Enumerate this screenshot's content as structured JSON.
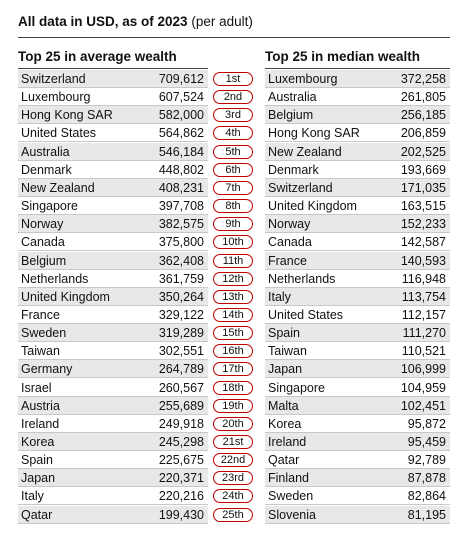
{
  "header": {
    "title": "All data in USD, as of 2023",
    "subtitle": "(per adult)"
  },
  "average": {
    "title": "Top 25 in average wealth",
    "rows": [
      [
        "Switzerland",
        "709,612"
      ],
      [
        "Luxembourg",
        "607,524"
      ],
      [
        "Hong Kong SAR",
        "582,000"
      ],
      [
        "United States",
        "564,862"
      ],
      [
        "Australia",
        "546,184"
      ],
      [
        "Denmark",
        "448,802"
      ],
      [
        "New Zealand",
        "408,231"
      ],
      [
        "Singapore",
        "397,708"
      ],
      [
        "Norway",
        "382,575"
      ],
      [
        "Canada",
        "375,800"
      ],
      [
        "Belgium",
        "362,408"
      ],
      [
        "Netherlands",
        "361,759"
      ],
      [
        "United Kingdom",
        "350,264"
      ],
      [
        "France",
        "329,122"
      ],
      [
        "Sweden",
        "319,289"
      ],
      [
        "Taiwan",
        "302,551"
      ],
      [
        "Germany",
        "264,789"
      ],
      [
        "Israel",
        "260,567"
      ],
      [
        "Austria",
        "255,689"
      ],
      [
        "Ireland",
        "249,918"
      ],
      [
        "Korea",
        "245,298"
      ],
      [
        "Spain",
        "225,675"
      ],
      [
        "Japan",
        "220,371"
      ],
      [
        "Italy",
        "220,216"
      ],
      [
        "Qatar",
        "199,430"
      ]
    ]
  },
  "ranks": [
    "1st",
    "2nd",
    "3rd",
    "4th",
    "5th",
    "6th",
    "7th",
    "8th",
    "9th",
    "10th",
    "11th",
    "12th",
    "13th",
    "14th",
    "15th",
    "16th",
    "17th",
    "18th",
    "19th",
    "20th",
    "21st",
    "22nd",
    "23rd",
    "24th",
    "25th"
  ],
  "median": {
    "title": "Top 25 in median wealth",
    "rows": [
      [
        "Luxembourg",
        "372,258"
      ],
      [
        "Australia",
        "261,805"
      ],
      [
        "Belgium",
        "256,185"
      ],
      [
        "Hong Kong SAR",
        "206,859"
      ],
      [
        "New Zealand",
        "202,525"
      ],
      [
        "Denmark",
        "193,669"
      ],
      [
        "Switzerland",
        "171,035"
      ],
      [
        "United Kingdom",
        "163,515"
      ],
      [
        "Norway",
        "152,233"
      ],
      [
        "Canada",
        "142,587"
      ],
      [
        "France",
        "140,593"
      ],
      [
        "Netherlands",
        "116,948"
      ],
      [
        "Italy",
        "113,754"
      ],
      [
        "United States",
        "112,157"
      ],
      [
        "Spain",
        "111,270"
      ],
      [
        "Taiwan",
        "110,521"
      ],
      [
        "Japan",
        "106,999"
      ],
      [
        "Singapore",
        "104,959"
      ],
      [
        "Malta",
        "102,451"
      ],
      [
        "Korea",
        "95,872"
      ],
      [
        "Ireland",
        "95,459"
      ],
      [
        "Qatar",
        "92,789"
      ],
      [
        "Finland",
        "87,878"
      ],
      [
        "Sweden",
        "82,864"
      ],
      [
        "Slovenia",
        "81,195"
      ]
    ]
  }
}
